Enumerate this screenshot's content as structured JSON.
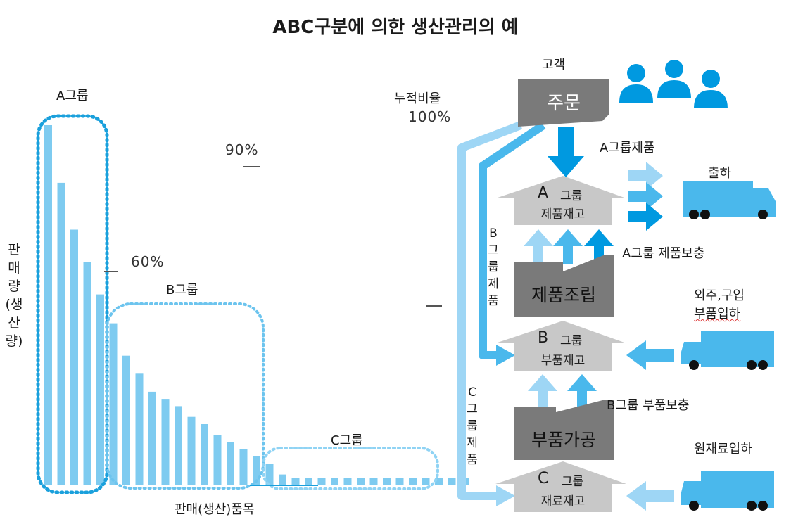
{
  "title": "ABC구분에 의한 생산관리의 예",
  "chart": {
    "groups": {
      "a": "A그룹",
      "b": "B그룹",
      "c": "C그룹"
    },
    "ylabel": "판매량(생산량)",
    "xlabel": "판매(생산)품목",
    "cumulative_label": "누적비율",
    "pct_100": "100%",
    "pct_90": "90%",
    "pct_60": "60%"
  },
  "chart_data": {
    "type": "bar",
    "title": "",
    "xlabel": "판매(생산)품목",
    "ylabel": "판매량(생산량)",
    "groups": [
      {
        "name": "A그룹",
        "values": [
          100,
          84,
          71,
          62,
          53
        ]
      },
      {
        "name": "B그룹",
        "values": [
          45,
          36,
          31,
          26,
          24,
          22,
          19,
          17,
          14,
          12,
          10,
          8,
          6
        ]
      },
      {
        "name": "C그룹",
        "values": [
          3,
          2,
          2,
          2,
          2,
          2,
          2,
          2,
          2,
          2,
          2,
          2,
          2,
          2,
          2
        ]
      }
    ],
    "cumulative_markers": [
      "60%",
      "90%",
      "100%"
    ],
    "colors": {
      "bar": "#7ecbf0",
      "group_outline": "#1aa0dc"
    }
  },
  "flow": {
    "customer": "고객",
    "order": "주문",
    "a_product_label": "A그룹제품",
    "shipping": "출하",
    "a_box_letter": "A",
    "a_box_group": "그룹",
    "a_box_sub": "제품재고",
    "a_replenish": "A그룹 제품보충",
    "b_flow_vertical": "B그룹제품",
    "assembly": "제품조립",
    "outsource_line1": "외주,구입",
    "outsource_line2": "부품입하",
    "b_box_letter": "B",
    "b_box_group": "그룹",
    "b_box_sub": "부품재고",
    "b_replenish": "B그룹 부품보충",
    "parts_processing": "부품가공",
    "c_flow_vertical": "C그룹제품",
    "raw_material_in": "원재료입하",
    "c_box_letter": "C",
    "c_box_group": "그룹",
    "c_box_sub": "재료재고"
  },
  "icons": [
    "person-icon",
    "truck-icon"
  ],
  "colors": {
    "accent_blue": "#0099e0",
    "light_blue": "#9ed6f5",
    "mid_blue": "#4ab8ec",
    "dark_gray": "#7a7a7a",
    "light_gray": "#c8c8c8",
    "bar_blue": "#7ecbf0"
  }
}
